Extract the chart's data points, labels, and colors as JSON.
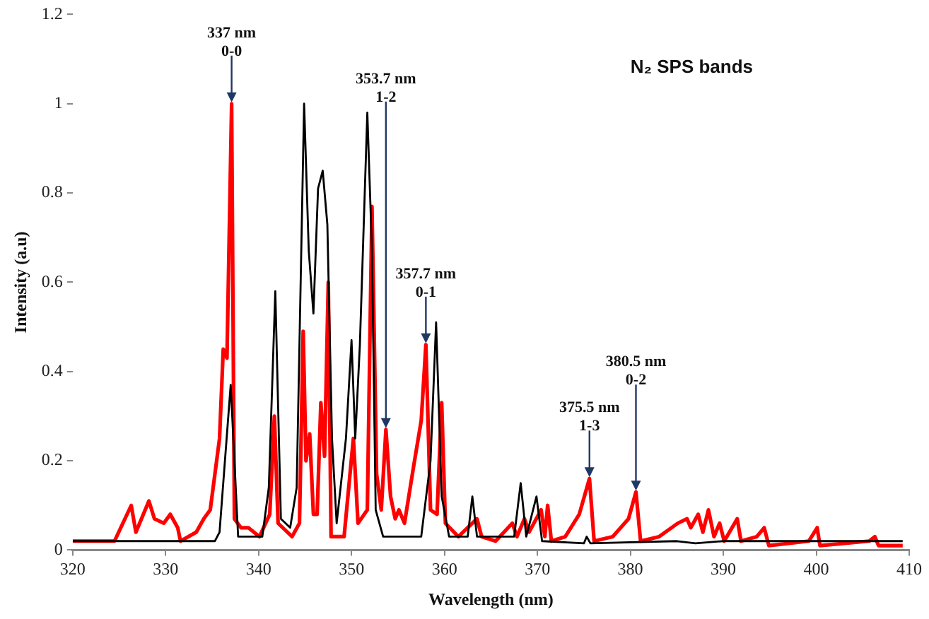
{
  "chart_data": {
    "type": "line",
    "title": "N₂ SPS bands",
    "xlabel": "Wavelength (nm)",
    "ylabel": "Intensity (a.u)",
    "xlim": [
      320,
      410
    ],
    "xticks": [
      320,
      330,
      340,
      350,
      360,
      370,
      380,
      390,
      400,
      410
    ],
    "ylim": [
      0,
      1.2
    ],
    "yticks": [
      0,
      0.2,
      0.4,
      0.6,
      0.8,
      1,
      1.2
    ],
    "grid": false,
    "legend": false,
    "marker": "none",
    "line_style": "solid",
    "series": [
      {
        "color": "#000000",
        "x": [
          320,
          328.3,
          335.3,
          335.8,
          337.0,
          337.8,
          340.4,
          341.1,
          341.8,
          342.4,
          343.4,
          344.1,
          344.9,
          345.4,
          345.9,
          346.4,
          346.9,
          347.4,
          347.9,
          348.4,
          349.4,
          350.0,
          350.4,
          350.9,
          351.7,
          352.2,
          352.6,
          353.4,
          357.5,
          358.5,
          359.1,
          359.7,
          360.5,
          362.5,
          363.0,
          363.5,
          367.5,
          368.2,
          368.8,
          369.9,
          370.5,
          375.0,
          375.3,
          375.7,
          385.0,
          387.0,
          390.0,
          409.3
        ],
        "values": [
          0.02,
          0.02,
          0.02,
          0.04,
          0.37,
          0.03,
          0.03,
          0.14,
          0.58,
          0.07,
          0.05,
          0.14,
          1.0,
          0.67,
          0.53,
          0.81,
          0.85,
          0.73,
          0.25,
          0.06,
          0.25,
          0.47,
          0.25,
          0.46,
          0.98,
          0.67,
          0.09,
          0.03,
          0.03,
          0.2,
          0.51,
          0.12,
          0.03,
          0.03,
          0.12,
          0.03,
          0.03,
          0.15,
          0.03,
          0.12,
          0.02,
          0.015,
          0.03,
          0.015,
          0.02,
          0.015,
          0.02,
          0.02
        ]
      },
      {
        "color": "#ff0000",
        "x": [
          320,
          324.5,
          326.3,
          326.8,
          328.2,
          328.8,
          329.8,
          330.5,
          331.3,
          331.6,
          333.3,
          334.1,
          334.8,
          335.8,
          336.2,
          336.6,
          337.1,
          337.4,
          338.1,
          338.9,
          340.1,
          341.2,
          341.7,
          342.1,
          343.6,
          344.4,
          344.8,
          345.1,
          345.5,
          345.9,
          346.3,
          346.7,
          347.1,
          347.5,
          347.8,
          349.2,
          350.2,
          350.7,
          351.7,
          352.2,
          352.7,
          353.2,
          353.7,
          354.2,
          354.7,
          355.1,
          355.7,
          356.7,
          357.5,
          358.0,
          358.5,
          359.2,
          359.7,
          360.1,
          361.5,
          363.5,
          364.0,
          365.5,
          367.3,
          367.8,
          368.6,
          369.1,
          370.4,
          370.8,
          371.1,
          371.5,
          373.0,
          374.5,
          375.6,
          376.1,
          378.1,
          379.8,
          380.6,
          381.1,
          383.1,
          385.1,
          386.1,
          386.5,
          387.3,
          387.8,
          388.4,
          389.0,
          389.6,
          390.1,
          391.5,
          391.9,
          393.6,
          394.4,
          394.9,
          399.2,
          400.1,
          400.4,
          405.7,
          406.3,
          406.7,
          409.3
        ],
        "values": [
          0.02,
          0.02,
          0.1,
          0.04,
          0.11,
          0.07,
          0.06,
          0.08,
          0.05,
          0.02,
          0.04,
          0.07,
          0.09,
          0.25,
          0.45,
          0.43,
          1.0,
          0.07,
          0.05,
          0.05,
          0.03,
          0.08,
          0.3,
          0.06,
          0.03,
          0.06,
          0.49,
          0.2,
          0.26,
          0.08,
          0.08,
          0.33,
          0.21,
          0.6,
          0.03,
          0.03,
          0.25,
          0.06,
          0.09,
          0.77,
          0.17,
          0.09,
          0.27,
          0.12,
          0.07,
          0.09,
          0.06,
          0.19,
          0.29,
          0.46,
          0.09,
          0.08,
          0.33,
          0.06,
          0.03,
          0.07,
          0.03,
          0.02,
          0.06,
          0.03,
          0.07,
          0.04,
          0.09,
          0.03,
          0.1,
          0.02,
          0.03,
          0.08,
          0.16,
          0.02,
          0.03,
          0.07,
          0.13,
          0.02,
          0.03,
          0.06,
          0.07,
          0.05,
          0.08,
          0.04,
          0.09,
          0.03,
          0.06,
          0.02,
          0.07,
          0.02,
          0.03,
          0.05,
          0.01,
          0.02,
          0.05,
          0.01,
          0.02,
          0.03,
          0.01,
          0.01
        ]
      }
    ],
    "annotations": [
      {
        "text": "337 nm\n0-0",
        "x": 337.1,
        "y": 1.0
      },
      {
        "text": "353.7 nm\n1-2",
        "x": 353.7,
        "y": 0.27
      },
      {
        "text": "357.7 nm\n0-1",
        "x": 358.0,
        "y": 0.46
      },
      {
        "text": "375.5 nm\n1-3",
        "x": 375.6,
        "y": 0.16
      },
      {
        "text": "380.5 nm\n0-2",
        "x": 380.6,
        "y": 0.13
      }
    ]
  }
}
